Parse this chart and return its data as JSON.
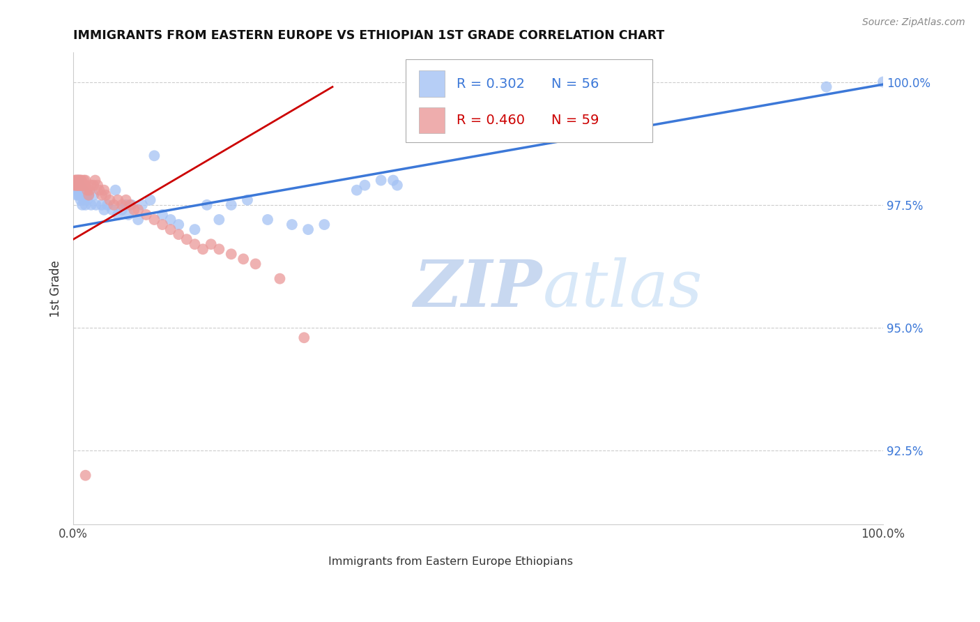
{
  "title": "IMMIGRANTS FROM EASTERN EUROPE VS ETHIOPIAN 1ST GRADE CORRELATION CHART",
  "source": "Source: ZipAtlas.com",
  "ylabel": "1st Grade",
  "legend1_label": "Immigrants from Eastern Europe",
  "legend2_label": "Ethiopians",
  "legend_r1": "R = 0.302",
  "legend_n1": "N = 56",
  "legend_r2": "R = 0.460",
  "legend_n2": "N = 59",
  "blue_color": "#a4c2f4",
  "pink_color": "#ea9999",
  "blue_line_color": "#3c78d8",
  "pink_line_color": "#cc0000",
  "background_color": "#ffffff",
  "watermark_zip": "ZIP",
  "watermark_atlas": "atlas",
  "xlim": [
    0.0,
    1.0
  ],
  "ylim": [
    0.91,
    1.006
  ],
  "yticks": [
    0.925,
    0.95,
    0.975,
    1.0
  ],
  "ytick_labels": [
    "92.5%",
    "95.0%",
    "97.5%",
    "100.0%"
  ],
  "blue_line_x0": 0.0,
  "blue_line_y0": 0.9705,
  "blue_line_x1": 1.0,
  "blue_line_y1": 0.9995,
  "pink_line_x0": 0.0,
  "pink_line_y0": 0.968,
  "pink_line_x1": 0.32,
  "pink_line_y1": 0.999
}
